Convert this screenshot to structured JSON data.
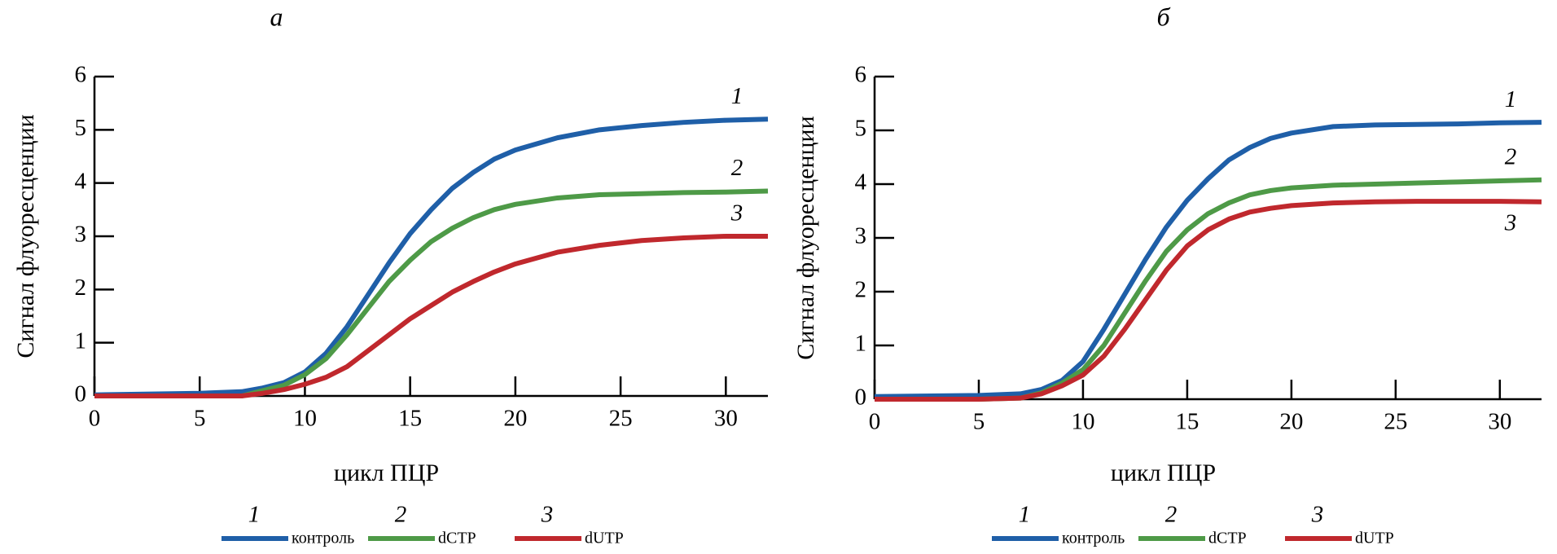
{
  "chart_data": [
    {
      "type": "line",
      "title": "а",
      "xlabel": "цикл ПЦР",
      "ylabel": "Сигнал флуоресценции",
      "x": [
        0,
        5,
        7,
        8,
        9,
        10,
        11,
        12,
        13,
        14,
        15,
        16,
        17,
        18,
        19,
        20,
        22,
        24,
        26,
        28,
        30,
        32
      ],
      "series": [
        {
          "name": "контроль",
          "label": "1",
          "color": "#1f5fa8",
          "values": [
            0.02,
            0.05,
            0.08,
            0.15,
            0.25,
            0.45,
            0.8,
            1.3,
            1.9,
            2.5,
            3.05,
            3.5,
            3.9,
            4.2,
            4.45,
            4.62,
            4.85,
            5.0,
            5.08,
            5.14,
            5.18,
            5.2
          ]
        },
        {
          "name": "dCTP",
          "label": "2",
          "color": "#4e9a47",
          "values": [
            0,
            0,
            0,
            0.1,
            0.2,
            0.4,
            0.7,
            1.15,
            1.65,
            2.15,
            2.55,
            2.9,
            3.15,
            3.35,
            3.5,
            3.6,
            3.72,
            3.78,
            3.8,
            3.82,
            3.83,
            3.85
          ]
        },
        {
          "name": "dUTP",
          "label": "3",
          "color": "#c0282d",
          "values": [
            0,
            0,
            0,
            0.05,
            0.12,
            0.22,
            0.35,
            0.55,
            0.85,
            1.15,
            1.45,
            1.7,
            1.95,
            2.15,
            2.33,
            2.48,
            2.7,
            2.83,
            2.92,
            2.97,
            3.0,
            3.0
          ]
        }
      ],
      "xlim": [
        0,
        32
      ],
      "ylim": [
        0,
        6
      ],
      "xticks": [
        0,
        5,
        10,
        15,
        20,
        25,
        30
      ],
      "yticks": [
        0,
        1,
        2,
        3,
        4,
        5,
        6
      ]
    },
    {
      "type": "line",
      "title": "б",
      "xlabel": "цикл ПЦР",
      "ylabel": "Сигнал флуоресценции",
      "x": [
        0,
        5,
        7,
        8,
        9,
        10,
        11,
        12,
        13,
        14,
        15,
        16,
        17,
        18,
        19,
        20,
        22,
        24,
        26,
        28,
        30,
        32
      ],
      "series": [
        {
          "name": "контроль",
          "label": "1",
          "color": "#1f5fa8",
          "values": [
            0.05,
            0.07,
            0.1,
            0.18,
            0.35,
            0.7,
            1.3,
            1.95,
            2.6,
            3.2,
            3.7,
            4.1,
            4.45,
            4.68,
            4.85,
            4.95,
            5.07,
            5.1,
            5.11,
            5.12,
            5.14,
            5.15
          ]
        },
        {
          "name": "dCTP",
          "label": "2",
          "color": "#4e9a47",
          "values": [
            0,
            0,
            0.02,
            0.12,
            0.3,
            0.55,
            1.0,
            1.6,
            2.2,
            2.75,
            3.15,
            3.45,
            3.65,
            3.8,
            3.88,
            3.93,
            3.98,
            4.0,
            4.02,
            4.04,
            4.06,
            4.08
          ]
        },
        {
          "name": "dUTP",
          "label": "3",
          "color": "#c0282d",
          "values": [
            0,
            0,
            0.02,
            0.1,
            0.25,
            0.45,
            0.8,
            1.3,
            1.85,
            2.4,
            2.85,
            3.15,
            3.35,
            3.48,
            3.55,
            3.6,
            3.65,
            3.67,
            3.68,
            3.68,
            3.68,
            3.67
          ]
        }
      ],
      "xlim": [
        0,
        32
      ],
      "ylim": [
        0,
        6
      ],
      "xticks": [
        0,
        5,
        10,
        15,
        20,
        25,
        30
      ],
      "yticks": [
        0,
        1,
        2,
        3,
        4,
        5,
        6
      ]
    }
  ]
}
